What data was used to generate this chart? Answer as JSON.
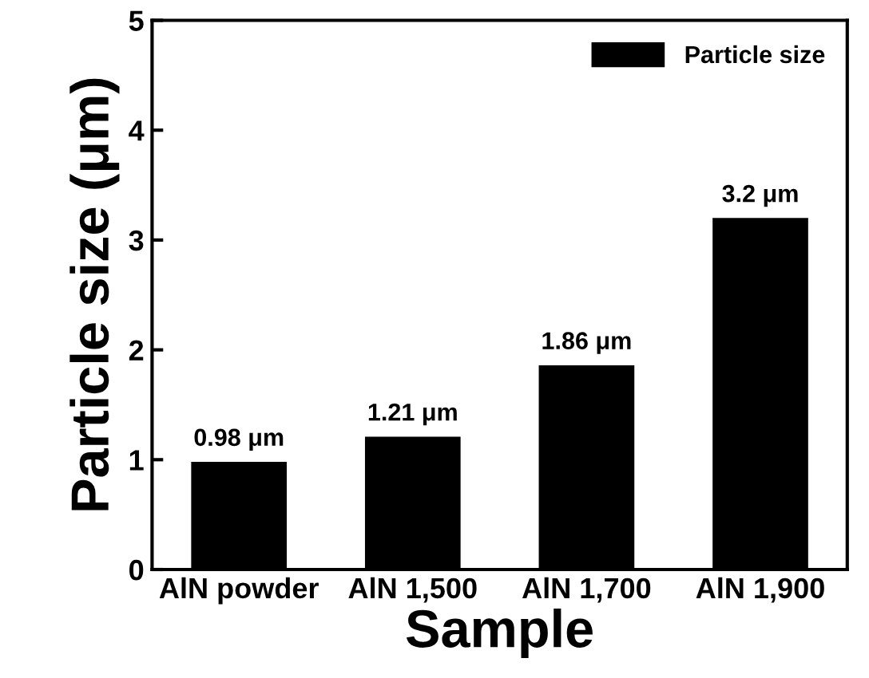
{
  "chart_data": {
    "type": "bar",
    "xlabel": "Sample",
    "ylabel": "Particle size (μm)",
    "categories": [
      "AlN powder",
      "AlN 1,500",
      "AlN 1,700",
      "AlN 1,900"
    ],
    "series": [
      {
        "name": "Particle size",
        "color": "#000000",
        "values": [
          0.98,
          1.21,
          1.86,
          3.2
        ],
        "value_labels": [
          "0.98 μm",
          "1.21 μm",
          "1.86 μm",
          "3.2 μm"
        ]
      }
    ],
    "ylim": [
      0,
      5
    ],
    "yticks": [
      0,
      1,
      2,
      3,
      4,
      5
    ],
    "legend": "top right",
    "grid": false
  }
}
